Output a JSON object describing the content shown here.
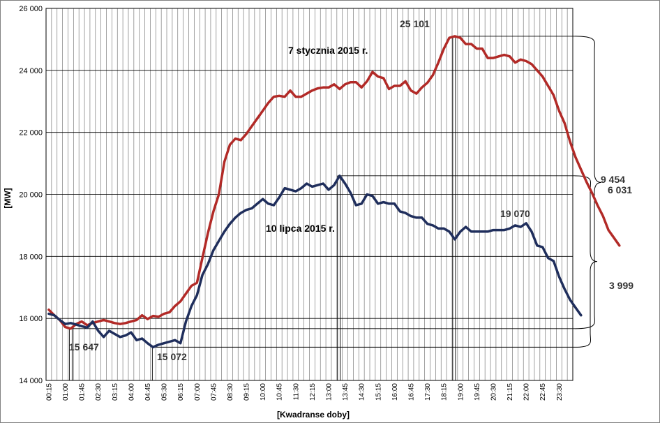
{
  "chart_data": {
    "type": "line",
    "ylabel": "[MW]",
    "xlabel": "[Kwadranse doby]",
    "ylim": [
      14000,
      26000
    ],
    "y_ticks": [
      14000,
      16000,
      18000,
      20000,
      22000,
      24000,
      26000
    ],
    "y_tick_labels": [
      "14 000",
      "16 000",
      "18 000",
      "20 000",
      "22 000",
      "24 000",
      "26 000"
    ],
    "grid": true,
    "x_tick_labels": [
      "00:15",
      "01:00",
      "01:45",
      "02:30",
      "03:15",
      "04:00",
      "04:45",
      "05:30",
      "06:15",
      "07:00",
      "07:45",
      "08:30",
      "09:15",
      "10:00",
      "10:45",
      "11:30",
      "12:15",
      "13:00",
      "13:45",
      "14:30",
      "15:15",
      "16:00",
      "16:45",
      "17:30",
      "18:15",
      "19:00",
      "19:45",
      "20:30",
      "21:15",
      "22:00",
      "22:45",
      "23:30"
    ],
    "series": [
      {
        "name": "7 stycznia 2015 r.",
        "color": "#b22a27",
        "values": [
          16280,
          16100,
          15950,
          15720,
          15670,
          15820,
          15900,
          15780,
          15850,
          15900,
          15950,
          15900,
          15850,
          15820,
          15850,
          15900,
          15950,
          16100,
          15980,
          16080,
          16050,
          16150,
          16200,
          16400,
          16550,
          16800,
          17050,
          17150,
          17950,
          18750,
          19450,
          20000,
          21050,
          21600,
          21800,
          21750,
          21950,
          22200,
          22450,
          22700,
          22950,
          23150,
          23180,
          23150,
          23350,
          23150,
          23150,
          23250,
          23350,
          23420,
          23450,
          23450,
          23550,
          23400,
          23550,
          23620,
          23620,
          23450,
          23650,
          23950,
          23800,
          23750,
          23400,
          23500,
          23500,
          23650,
          23350,
          23250,
          23450,
          23600,
          23850,
          24250,
          24700,
          25050,
          25101,
          25050,
          24850,
          24850,
          24700,
          24700,
          24400,
          24400,
          24450,
          24500,
          24450,
          24250,
          24350,
          24300,
          24200,
          24000,
          23800,
          23500,
          23200,
          22700,
          22300,
          21700,
          21200,
          20800,
          20400,
          20050,
          19650,
          19300,
          18850,
          18600,
          18350
        ]
      },
      {
        "name": "10 lipca 2015 r.",
        "color": "#1f2e5c",
        "values": [
          16150,
          16100,
          15950,
          15820,
          15850,
          15800,
          15750,
          15700,
          15900,
          15600,
          15400,
          15600,
          15500,
          15400,
          15450,
          15550,
          15300,
          15350,
          15200,
          15072,
          15150,
          15200,
          15250,
          15300,
          15200,
          15900,
          16400,
          16750,
          17400,
          17750,
          18200,
          18500,
          18800,
          19050,
          19250,
          19400,
          19500,
          19550,
          19700,
          19850,
          19700,
          19650,
          19900,
          20200,
          20150,
          20100,
          20200,
          20350,
          20250,
          20300,
          20350,
          20150,
          20300,
          20600,
          20350,
          20050,
          19650,
          19700,
          20000,
          19950,
          19700,
          19750,
          19700,
          19700,
          19450,
          19400,
          19300,
          19250,
          19250,
          19050,
          19000,
          18900,
          18900,
          18800,
          18550,
          18800,
          18950,
          18800,
          18800,
          18800,
          18800,
          18850,
          18850,
          18850,
          18900,
          19000,
          18950,
          19070,
          18800,
          18350,
          18300,
          17950,
          17850,
          17350,
          16950,
          16600,
          16350,
          16100
        ]
      }
    ],
    "annotations": [
      {
        "text": "25 101"
      },
      {
        "text": "19 070"
      },
      {
        "text": "15 647"
      },
      {
        "text": "15 072"
      },
      {
        "text": "9 454"
      },
      {
        "text": "6 031"
      },
      {
        "text": "3 999"
      }
    ]
  }
}
